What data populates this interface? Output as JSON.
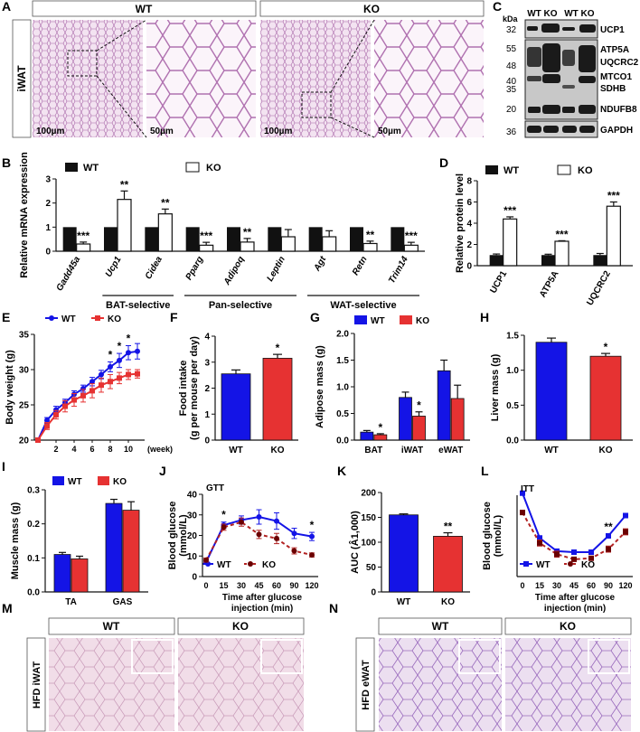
{
  "colors": {
    "wt": "#1414e6",
    "ko": "#e63232",
    "black": "#111111",
    "white": "#ffffff",
    "histo": "#e8cde6",
    "histo_line": "#b070b0",
    "blot_bg": "#cfcfcf"
  },
  "panels": {
    "A": {
      "letter": "A",
      "wt": "WT",
      "ko": "KO",
      "tissue": "iWAT",
      "scales": [
        "100µm",
        "50µm",
        "100µm",
        "50µm"
      ]
    },
    "B": {
      "letter": "B",
      "legend": [
        "WT",
        "KO"
      ]
    },
    "C": {
      "letter": "C",
      "kda": "kDa",
      "lanes": [
        "WT",
        "KO",
        "WT",
        "KO"
      ],
      "mw": [
        "32",
        "55",
        "48",
        "40",
        "35",
        "20",
        "36"
      ],
      "bands": [
        "UCP1",
        "ATP5A",
        "UQCRC2",
        "MTCO1",
        "SDHB",
        "NDUFB8",
        "GAPDH"
      ]
    },
    "D": {
      "letter": "D",
      "legend": [
        "WT",
        "KO"
      ]
    },
    "E": {
      "letter": "E",
      "legend": [
        "WT",
        "KO"
      ]
    },
    "F": {
      "letter": "F"
    },
    "G": {
      "letter": "G",
      "legend": [
        "WT",
        "KO"
      ]
    },
    "H": {
      "letter": "H"
    },
    "I": {
      "letter": "I",
      "legend": [
        "WT",
        "KO"
      ]
    },
    "J": {
      "letter": "J",
      "legend": [
        "WT",
        "KO"
      ]
    },
    "K": {
      "letter": "K"
    },
    "L": {
      "letter": "L",
      "legend": [
        "WT",
        "KO"
      ]
    },
    "M": {
      "letter": "M",
      "wt": "WT",
      "ko": "KO",
      "label": "HFD  iWAT"
    },
    "N": {
      "letter": "N",
      "wt": "WT",
      "ko": "KO",
      "label": "HFD  eWAT"
    }
  },
  "chart_data": [
    {
      "id": "B",
      "type": "bar",
      "ylabel": "Relative mRNA expression",
      "ylim": [
        0,
        3
      ],
      "yticks": [
        "0",
        "1",
        "2",
        "3"
      ],
      "categories": [
        "Gadd45a",
        "Ucp1",
        "Cidea",
        "Pparg",
        "Adipoq",
        "Leptin",
        "Agt",
        "Retn",
        "Trim14"
      ],
      "series": [
        {
          "name": "WT",
          "values": [
            1,
            1,
            1,
            1,
            1,
            1,
            1,
            1,
            1
          ],
          "err": [
            0,
            0,
            0,
            0,
            0,
            0,
            0,
            0,
            0
          ]
        },
        {
          "name": "KO",
          "values": [
            0.3,
            2.15,
            1.55,
            0.25,
            0.38,
            0.6,
            0.6,
            0.32,
            0.25
          ],
          "err": [
            0.08,
            0.35,
            0.2,
            0.12,
            0.15,
            0.3,
            0.25,
            0.1,
            0.12
          ]
        }
      ],
      "sig": [
        "***",
        "**",
        "**",
        "***",
        "**",
        "",
        "",
        "**",
        "***"
      ],
      "groups": [
        {
          "label": "BAT-selective",
          "from": 1,
          "to": 2
        },
        {
          "label": "Pan-selective",
          "from": 3,
          "to": 5
        },
        {
          "label": "WAT-selective",
          "from": 6,
          "to": 8
        }
      ]
    },
    {
      "id": "D",
      "type": "bar",
      "ylabel": "Relative protein level",
      "ylim": [
        0,
        8
      ],
      "yticks": [
        "0",
        "2",
        "4",
        "6",
        "8"
      ],
      "categories": [
        "UCP1",
        "ATP5A",
        "UQCRC2"
      ],
      "series": [
        {
          "name": "WT",
          "values": [
            1,
            1,
            1
          ],
          "err": [
            0.1,
            0.08,
            0.15
          ]
        },
        {
          "name": "KO",
          "values": [
            4.4,
            2.3,
            5.6
          ],
          "err": [
            0.2,
            0.05,
            0.4
          ]
        }
      ],
      "sig": [
        "***",
        "***",
        "***"
      ]
    },
    {
      "id": "E",
      "type": "line",
      "ylabel": "Body weight (g)",
      "xlabel": "(week)",
      "ylim": [
        20,
        35
      ],
      "yticks": [
        "20",
        "25",
        "30",
        "35"
      ],
      "xticks": [
        "2",
        "4",
        "6",
        "8",
        "10"
      ],
      "x": [
        0,
        1,
        2,
        3,
        4,
        5,
        6,
        7,
        8,
        9,
        10,
        11
      ],
      "series": [
        {
          "name": "WT",
          "values": [
            20,
            22.8,
            24.3,
            25.3,
            26.5,
            27.3,
            28.3,
            29.3,
            30.4,
            31.3,
            32.4,
            32.6
          ],
          "err": [
            0.3,
            0.4,
            0.5,
            0.5,
            0.5,
            0.5,
            0.6,
            0.6,
            0.7,
            1.0,
            1.0,
            1.1
          ]
        },
        {
          "name": "KO",
          "values": [
            20,
            22,
            23.6,
            24.8,
            25.7,
            26.3,
            27.0,
            27.8,
            28.3,
            28.8,
            29.3,
            29.4
          ],
          "err": [
            0.3,
            0.5,
            0.6,
            0.8,
            0.9,
            0.9,
            1.0,
            1.0,
            1.0,
            0.8,
            0.7,
            0.6
          ]
        }
      ],
      "sig": [
        {
          "x": 8,
          "text": "*"
        },
        {
          "x": 9,
          "text": "*"
        },
        {
          "x": 10,
          "text": "*"
        }
      ]
    },
    {
      "id": "F",
      "type": "bar",
      "ylabel": "Food intake\n(g per mouse per day)",
      "ylim": [
        0,
        4
      ],
      "yticks": [
        "0",
        "1",
        "2",
        "3",
        "4"
      ],
      "categories": [
        "WT",
        "KO"
      ],
      "values": [
        2.55,
        3.15
      ],
      "err": [
        0.15,
        0.15
      ],
      "sig": [
        "",
        "*"
      ]
    },
    {
      "id": "G",
      "type": "bar",
      "ylabel": "Adipose mass (g)",
      "ylim": [
        0,
        2
      ],
      "yticks": [
        "0.0",
        "0.5",
        "1.0",
        "1.5",
        "2.0"
      ],
      "categories": [
        "BAT",
        "iWAT",
        "eWAT"
      ],
      "series": [
        {
          "name": "WT",
          "values": [
            0.15,
            0.8,
            1.3
          ],
          "err": [
            0.03,
            0.1,
            0.2
          ]
        },
        {
          "name": "KO",
          "values": [
            0.1,
            0.45,
            0.78
          ],
          "err": [
            0.02,
            0.08,
            0.25
          ]
        }
      ],
      "sig": [
        "*",
        "*",
        ""
      ]
    },
    {
      "id": "H",
      "type": "bar",
      "ylabel": "Liver mass (g)",
      "ylim": [
        0,
        1.5
      ],
      "yticks": [
        "0.0",
        "0.5",
        "1.0",
        "1.5"
      ],
      "categories": [
        "WT",
        "KO"
      ],
      "values": [
        1.4,
        1.2
      ],
      "err": [
        0.06,
        0.04
      ],
      "sig": [
        "",
        "*"
      ]
    },
    {
      "id": "I",
      "type": "bar",
      "ylabel": "Muscle mass (g)",
      "ylim": [
        0,
        0.3
      ],
      "yticks": [
        "0.0",
        "0.1",
        "0.2",
        "0.3"
      ],
      "categories": [
        "TA",
        "GAS"
      ],
      "series": [
        {
          "name": "WT",
          "values": [
            0.11,
            0.26
          ],
          "err": [
            0.006,
            0.012
          ]
        },
        {
          "name": "KO",
          "values": [
            0.097,
            0.24
          ],
          "err": [
            0.008,
            0.025
          ]
        }
      ]
    },
    {
      "id": "J",
      "type": "line",
      "title": "GTT",
      "ylabel": "Blood glucose\n(mmol/L)",
      "xlabel": "Time after glucose\ninjection (min)",
      "ylim": [
        0,
        40
      ],
      "yticks": [
        "0",
        "10",
        "20",
        "30",
        "40"
      ],
      "x": [
        0,
        15,
        30,
        45,
        60,
        90,
        120
      ],
      "xticks": [
        "0",
        "15",
        "30",
        "45",
        "60",
        "90",
        "120"
      ],
      "series": [
        {
          "name": "WT",
          "values": [
            7,
            25,
            27.5,
            29,
            27,
            21,
            19.5
          ],
          "err": [
            1,
            1.5,
            2,
            3.5,
            4,
            2.5,
            2
          ]
        },
        {
          "name": "KO",
          "values": [
            8,
            24,
            26.5,
            20.5,
            18.5,
            12.5,
            10.5
          ],
          "err": [
            1,
            1.5,
            2,
            2,
            2.5,
            1.5,
            1
          ]
        }
      ],
      "sig": [
        {
          "x": 15,
          "text": "*"
        },
        {
          "x": 120,
          "text": "*"
        }
      ]
    },
    {
      "id": "K",
      "type": "bar",
      "ylabel": "AUC (Â1,000)",
      "ylim": [
        0,
        200
      ],
      "yticks": [
        "0",
        "50",
        "100",
        "150",
        "200"
      ],
      "categories": [
        "WT",
        "KO"
      ],
      "values": [
        155,
        112
      ],
      "err": [
        2,
        7
      ],
      "sig": [
        "",
        "**"
      ]
    },
    {
      "id": "L",
      "type": "line",
      "title": "ITT",
      "ylabel": "Blood glucose\n(mmol/L)",
      "xlabel": "Time after glucose\ninjection (min)",
      "ylim": [
        2,
        10
      ],
      "yticks": [],
      "x": [
        0,
        15,
        30,
        45,
        60,
        90,
        120
      ],
      "xticks": [
        "0",
        "15",
        "30",
        "45",
        "60",
        "90",
        "120"
      ],
      "series": [
        {
          "name": "WT",
          "values": [
            10.2,
            5.8,
            4.5,
            4.4,
            4.4,
            6.0,
            8.0
          ],
          "err": [
            0.1,
            0.2,
            0.2,
            0.2,
            0.2,
            0.2,
            0.2
          ]
        },
        {
          "name": "KO",
          "values": [
            8.3,
            5.3,
            4.2,
            3.7,
            3.8,
            4.7,
            6.4
          ],
          "err": [
            0.2,
            0.3,
            0.3,
            0.2,
            0.2,
            0.3,
            0.3
          ]
        }
      ],
      "sig": [
        {
          "x": 90,
          "text": "**"
        }
      ]
    }
  ]
}
